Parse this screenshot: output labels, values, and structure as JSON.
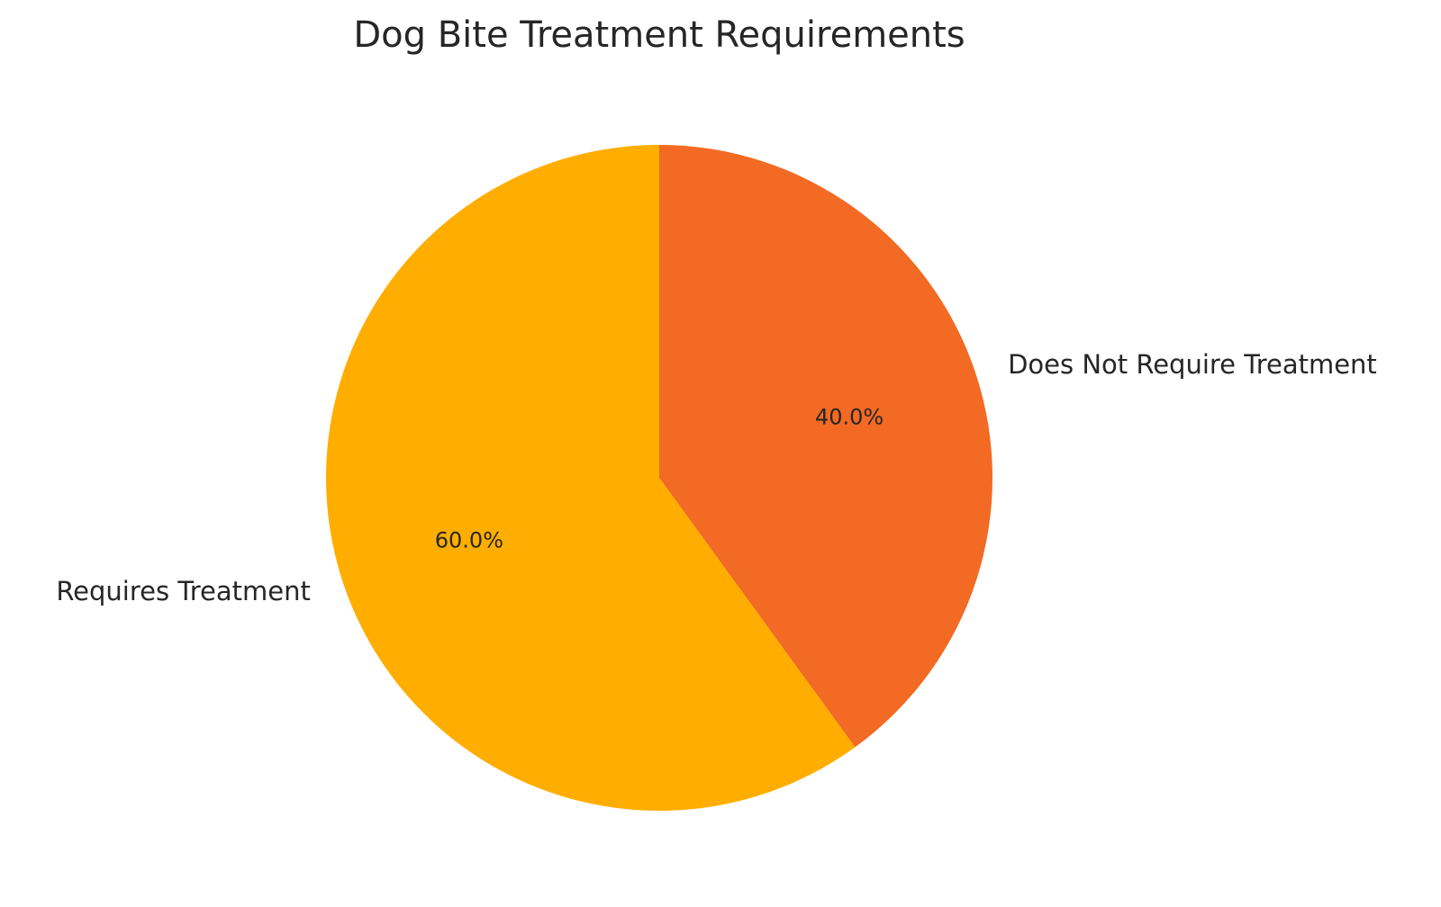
{
  "chart_data": {
    "type": "pie",
    "title": "Dog Bite Treatment Requirements",
    "labels": [
      "Requires Treatment",
      "Does Not Require Treatment"
    ],
    "values": [
      60,
      40
    ],
    "percent_labels": [
      "60.0%",
      "40.0%"
    ],
    "colors": [
      "#FFAE00",
      "#F26A23"
    ],
    "start_angle_deg": 90,
    "direction": "counterclockwise"
  }
}
